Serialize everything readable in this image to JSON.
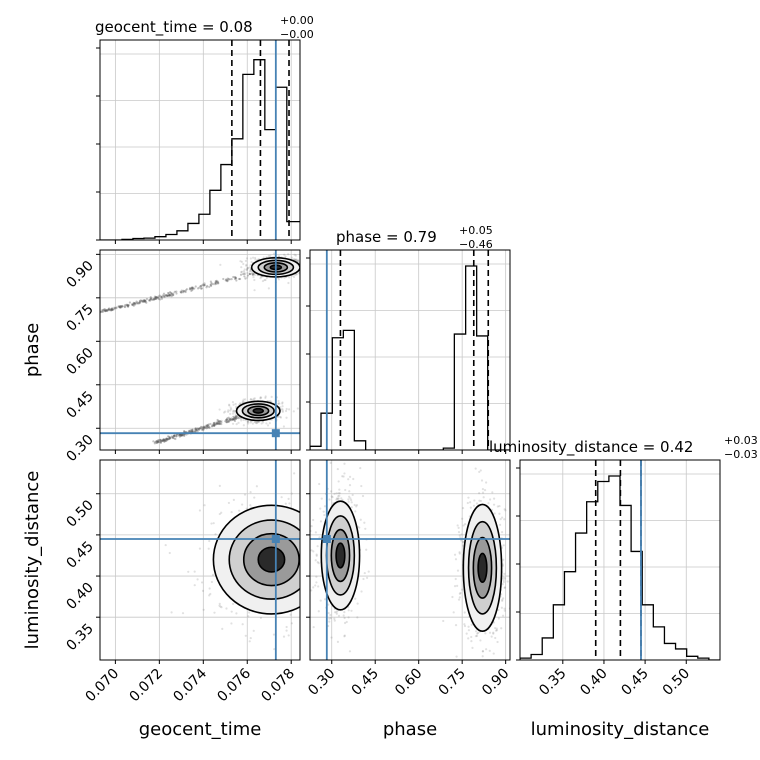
{
  "chart_data": {
    "type": "corner",
    "parameters": [
      "geocent_time",
      "phase",
      "luminosity_distance"
    ],
    "truth": {
      "geocent_time": 0.0773,
      "phase": 0.283,
      "luminosity_distance": 0.445
    },
    "truth_color": "#4682b4",
    "titles": [
      {
        "param": "geocent_time",
        "label": "geocent_time = 0.08",
        "plus": "+0.00",
        "minus": "−0.00"
      },
      {
        "param": "phase",
        "label": "phase = 0.79",
        "plus": "+0.05",
        "minus": "−0.46"
      },
      {
        "param": "luminosity_distance",
        "label": "luminosity_distance = 0.42",
        "plus": "+0.03",
        "minus": "−0.03"
      }
    ],
    "axes": {
      "geocent_time": {
        "range": [
          0.0693,
          0.0784
        ],
        "ticks": [
          0.07,
          0.072,
          0.074,
          0.076,
          0.078
        ],
        "tick_labels": [
          "0.070",
          "0.072",
          "0.074",
          "0.076",
          "0.078"
        ]
      },
      "phase": {
        "range": [
          0.225,
          0.915
        ],
        "ticks": [
          0.3,
          0.45,
          0.6,
          0.75,
          0.9
        ],
        "tick_labels": [
          "0.30",
          "0.45",
          "0.60",
          "0.75",
          "0.90"
        ]
      },
      "luminosity_distance": {
        "range": [
          0.298,
          0.541
        ],
        "ticks": [
          0.35,
          0.4,
          0.45,
          0.5
        ],
        "tick_labels": [
          "0.35",
          "0.40",
          "0.45",
          "0.50"
        ]
      }
    },
    "quantiles": {
      "geocent_time": [
        0.0753,
        0.0766,
        0.0779
      ],
      "phase": [
        0.33,
        0.79,
        0.84
      ],
      "luminosity_distance": [
        0.39,
        0.42,
        0.445
      ]
    },
    "histograms": {
      "geocent_time": {
        "bins": [
          0.0693,
          0.0698,
          0.0703,
          0.0708,
          0.0713,
          0.0718,
          0.0723,
          0.0728,
          0.0733,
          0.0738,
          0.0743,
          0.0748,
          0.0753,
          0.0758,
          0.0763,
          0.0768,
          0.0773,
          0.0778,
          0.0784
        ],
        "values": [
          0,
          0,
          0.003,
          0.008,
          0.01,
          0.018,
          0.03,
          0.05,
          0.09,
          0.14,
          0.27,
          0.41,
          0.55,
          0.9,
          0.98,
          0.6,
          0.83,
          0.1
        ]
      },
      "phase": {
        "bins": [
          0.225,
          0.263,
          0.302,
          0.34,
          0.378,
          0.417,
          0.455,
          0.493,
          0.532,
          0.57,
          0.608,
          0.647,
          0.685,
          0.723,
          0.762,
          0.8,
          0.838,
          0.877,
          0.915
        ],
        "values": [
          0.02,
          0.2,
          0.61,
          0.65,
          0.05,
          0,
          0,
          0,
          0,
          0,
          0,
          0,
          0.01,
          0.63,
          1.0,
          0.62,
          0,
          0
        ]
      },
      "luminosity_distance": {
        "bins": [
          0.298,
          0.3115,
          0.325,
          0.3385,
          0.352,
          0.3655,
          0.379,
          0.3925,
          0.406,
          0.4195,
          0.433,
          0.4465,
          0.46,
          0.4735,
          0.487,
          0.5005,
          0.514,
          0.5275,
          0.541
        ],
        "values": [
          0.01,
          0.03,
          0.12,
          0.3,
          0.48,
          0.69,
          0.86,
          0.97,
          1.0,
          0.84,
          0.59,
          0.3,
          0.18,
          0.09,
          0.06,
          0.02,
          0.01,
          0
        ]
      }
    },
    "contours_2d": [
      {
        "x": "geocent_time",
        "y": "phase",
        "modes": [
          {
            "center": [
              0.0773,
              0.855
            ],
            "sx": 0.0005,
            "sy": 0.015,
            "tail_to": [
              0.0693,
              0.7
            ]
          },
          {
            "center": [
              0.0765,
              0.36
            ],
            "sx": 0.00045,
            "sy": 0.015,
            "tail_to": [
              0.0718,
              0.25
            ]
          }
        ]
      },
      {
        "x": "geocent_time",
        "y": "luminosity_distance",
        "modes": [
          {
            "center": [
              0.0771,
              0.42
            ],
            "sx": 0.0012,
            "sy": 0.03
          }
        ]
      },
      {
        "x": "phase",
        "y": "luminosity_distance",
        "modes": [
          {
            "center": [
              0.33,
              0.425
            ],
            "sx": 0.03,
            "sy": 0.03
          },
          {
            "center": [
              0.82,
              0.41
            ],
            "sx": 0.03,
            "sy": 0.035
          }
        ]
      }
    ],
    "grid": true,
    "legend": "none"
  }
}
